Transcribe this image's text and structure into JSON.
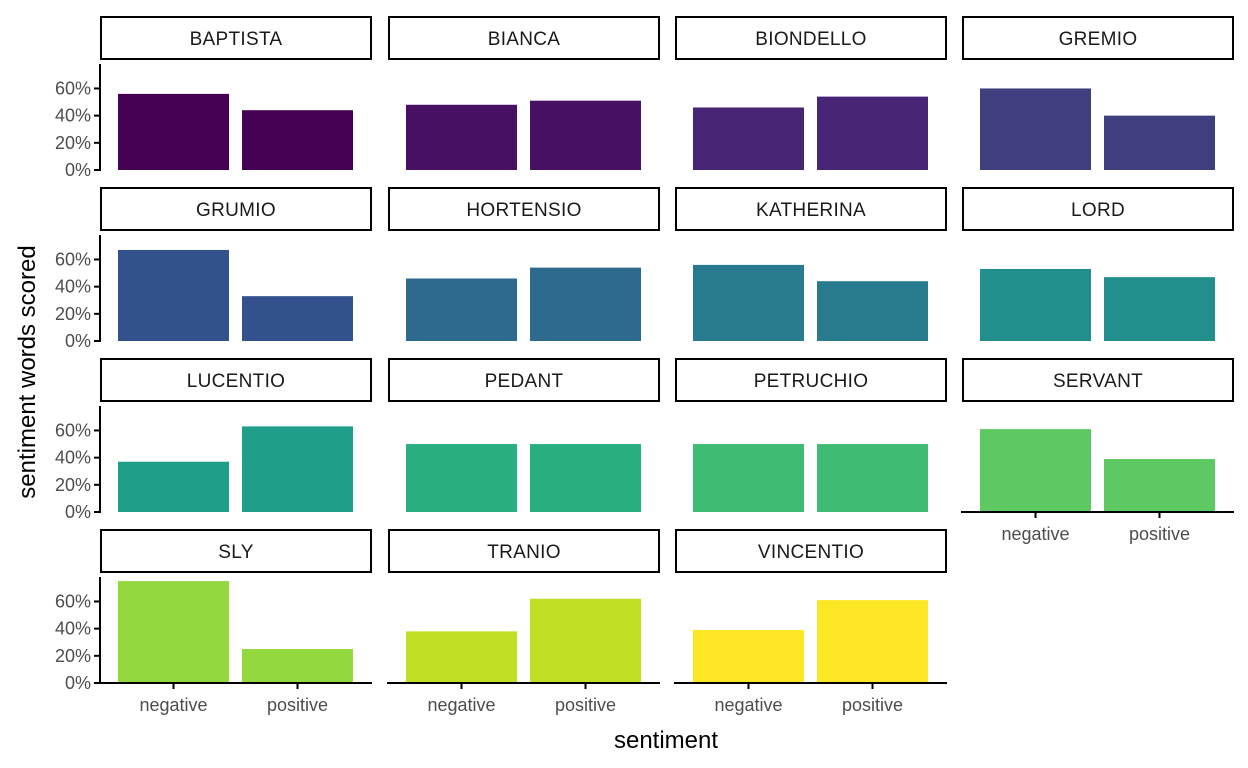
{
  "chart_data": {
    "type": "bar",
    "faceted": true,
    "facet_columns": 4,
    "xlabel": "sentiment",
    "ylabel": "sentiment words scored",
    "categories": [
      "negative",
      "positive"
    ],
    "ylim": [
      0,
      0.78
    ],
    "y_ticks": [
      0,
      0.2,
      0.4,
      0.6
    ],
    "y_tick_labels": [
      "0%",
      "20%",
      "40%",
      "60%"
    ],
    "grid": false,
    "legend": "none",
    "facets": [
      {
        "name": "BAPTISTA",
        "values": [
          0.56,
          0.44
        ],
        "color": "#440154"
      },
      {
        "name": "BIANCA",
        "values": [
          0.48,
          0.51
        ],
        "color": "#471063"
      },
      {
        "name": "BIONDELLO",
        "values": [
          0.46,
          0.54
        ],
        "color": "#482576"
      },
      {
        "name": "GREMIO",
        "values": [
          0.6,
          0.4
        ],
        "color": "#3e3f7e"
      },
      {
        "name": "GRUMIO",
        "values": [
          0.67,
          0.33
        ],
        "color": "#33528d"
      },
      {
        "name": "HORTENSIO",
        "values": [
          0.46,
          0.54
        ],
        "color": "#2d6a8e"
      },
      {
        "name": "KATHERINA",
        "values": [
          0.56,
          0.44
        ],
        "color": "#287a8e"
      },
      {
        "name": "LORD",
        "values": [
          0.53,
          0.47
        ],
        "color": "#21908d"
      },
      {
        "name": "LUCENTIO",
        "values": [
          0.37,
          0.63
        ],
        "color": "#1f9e89"
      },
      {
        "name": "PEDANT",
        "values": [
          0.5,
          0.5
        ],
        "color": "#29af7f"
      },
      {
        "name": "PETRUCHIO",
        "values": [
          0.5,
          0.5
        ],
        "color": "#3fbc73"
      },
      {
        "name": "SERVANT",
        "values": [
          0.61,
          0.39
        ],
        "color": "#5ec962"
      },
      {
        "name": "SLY",
        "values": [
          0.75,
          0.25
        ],
        "color": "#94d840"
      },
      {
        "name": "TRANIO",
        "values": [
          0.38,
          0.62
        ],
        "color": "#c1df24"
      },
      {
        "name": "VINCENTIO",
        "values": [
          0.39,
          0.61
        ],
        "color": "#fde725"
      }
    ]
  }
}
